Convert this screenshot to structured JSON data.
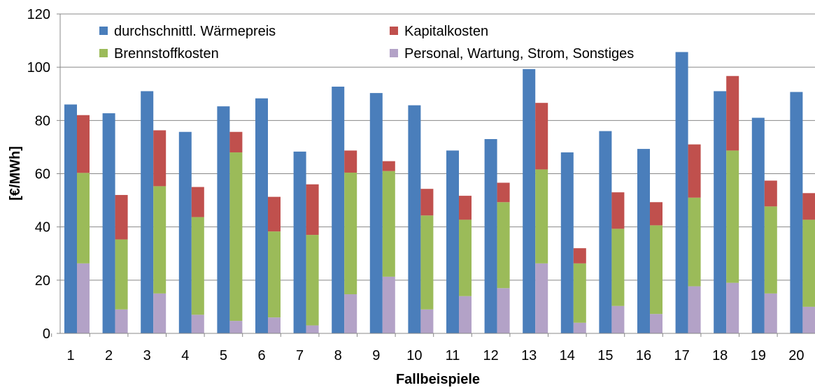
{
  "chart_data": {
    "type": "bar",
    "title": "",
    "xlabel": "Fallbeispiele",
    "ylabel": "[€/MWh]",
    "ylim": [
      0,
      120
    ],
    "yticks": [
      0,
      20,
      40,
      60,
      80,
      100,
      120
    ],
    "grid": "horizontal",
    "legend_position": "top",
    "categories": [
      "1",
      "2",
      "3",
      "4",
      "5",
      "6",
      "7",
      "8",
      "9",
      "10",
      "11",
      "12",
      "13",
      "14",
      "15",
      "16",
      "17",
      "18",
      "19",
      "20"
    ],
    "series": [
      {
        "name": "durchschnittl. Wärmepreis",
        "color": "#4a7ebb",
        "stack": "a",
        "values": [
          86,
          82.7,
          91,
          75.7,
          85.3,
          88.3,
          68.3,
          92.7,
          90.3,
          85.7,
          68.7,
          73,
          99.3,
          68,
          76,
          69.3,
          105.7,
          91,
          81,
          90.7
        ]
      },
      {
        "name": "Personal, Wartung, Strom, Sonstiges",
        "color": "#b3a2c7",
        "stack": "b",
        "values": [
          26.3,
          9,
          15,
          7,
          4.7,
          6,
          3,
          14.7,
          21.3,
          9,
          14,
          17,
          26.3,
          4,
          10.3,
          7.3,
          17.7,
          19,
          15,
          10
        ]
      },
      {
        "name": "Brennstoffkosten",
        "color": "#9bbb59",
        "stack": "b",
        "values": [
          34,
          26.3,
          40.3,
          36.7,
          63.3,
          32.3,
          34,
          45.7,
          39.7,
          35.3,
          28.7,
          32.3,
          35.3,
          22.3,
          29,
          33.3,
          33.3,
          49.7,
          32.7,
          32.7
        ]
      },
      {
        "name": "Kapitalkosten",
        "color": "#c0504d",
        "stack": "b",
        "values": [
          21.7,
          16.7,
          21,
          11.3,
          7.7,
          13,
          19,
          8.3,
          3.7,
          10,
          9,
          7.3,
          25,
          5.7,
          13.7,
          8.7,
          20,
          28,
          9.7,
          10
        ]
      }
    ]
  }
}
